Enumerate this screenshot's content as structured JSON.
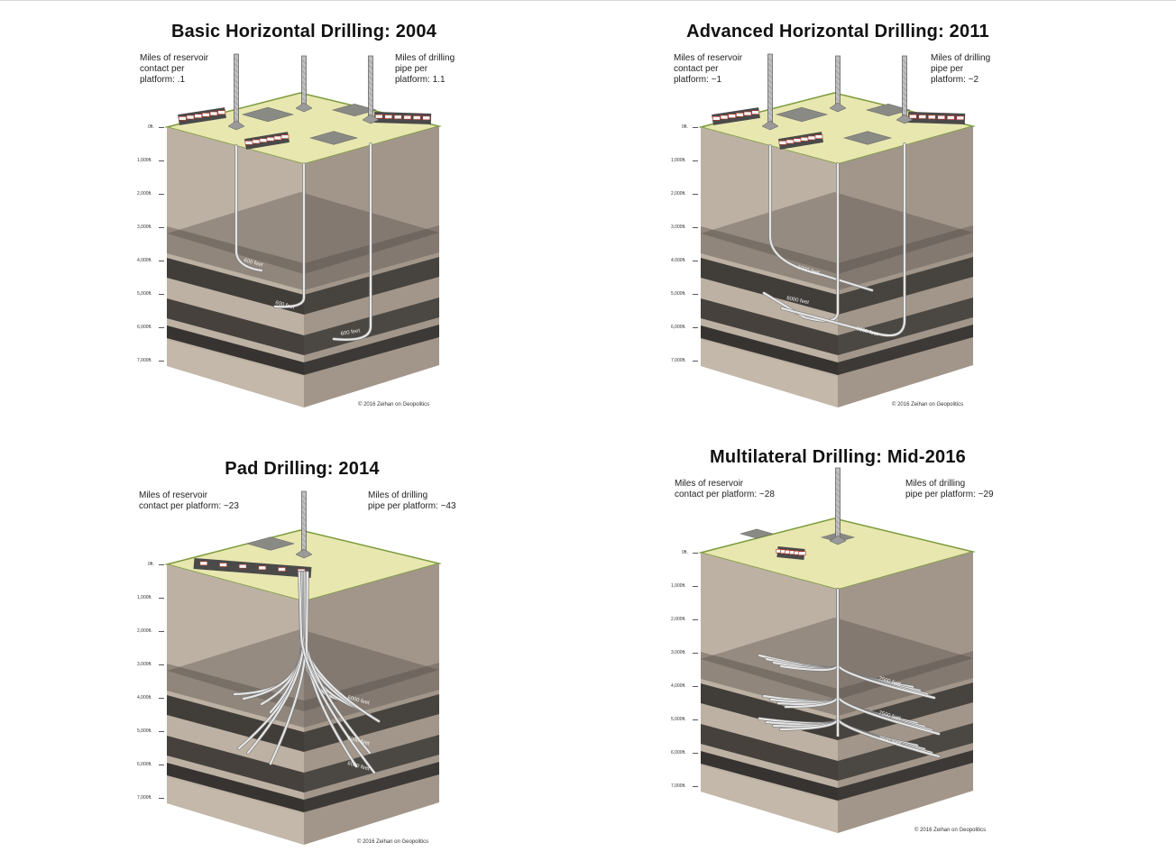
{
  "panels": [
    {
      "title": "Basic Horizontal Drilling: 2004",
      "left_note": "Miles of reservoir\ncontact per\nplatform: .1",
      "right_note": "Miles of drilling\npipe per\nplatform: 1.1",
      "lateral_labels": [
        "600 feet",
        "600 feet",
        "600 feet"
      ],
      "credit": "© 2016 Zeihan on Geopolitics"
    },
    {
      "title": "Advanced Horizontal Drilling: 2011",
      "left_note": "Miles of reservoir\ncontact per\nplatform: ~1",
      "right_note": "Miles of drilling\npipe per\nplatform: ~2",
      "lateral_labels": [
        "6000 feet",
        "6000 feet",
        "6000 feet"
      ],
      "credit": "© 2016 Zeihan on Geopolitics"
    },
    {
      "title": "Pad Drilling: 2014",
      "left_note": "Miles of reservoir\ncontact per platform: ~23",
      "right_note": "Miles of drilling\npipe per platform: ~43",
      "lateral_labels": [
        "6000 feet",
        "6000 feet",
        "6000 feet"
      ],
      "credit": "© 2016 Zeihan on Geopolitics"
    },
    {
      "title": "Multilateral Drilling: Mid-2016",
      "left_note": "Miles of reservoir\ncontact per platform: ~28",
      "right_note": "Miles of drilling\npipe per platform: ~29",
      "lateral_labels": [
        "7500 feet",
        "7500 feet",
        "7500 feet"
      ],
      "credit": "© 2016 Zeihan on Geopolitics"
    }
  ],
  "depth_labels": [
    "0ft.",
    "1,000ft.",
    "2,000ft.",
    "3,000ft.",
    "4,000ft.",
    "5,000ft.",
    "6,000ft.",
    "7,000ft."
  ],
  "colors": {
    "surface": "#e8e7b0",
    "surface_edge": "#7a9a3a",
    "earth_front": "#bdb1a3",
    "earth_side": "#a2968a",
    "shale": "#3d3a37",
    "pipe": "#e6e6e6"
  }
}
